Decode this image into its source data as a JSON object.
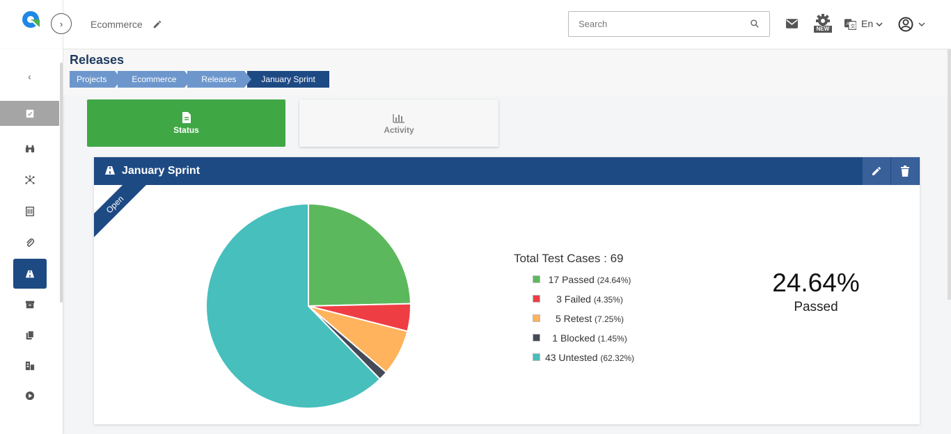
{
  "header": {
    "project_name": "Ecommerce",
    "search_placeholder": "Search",
    "language": "En",
    "new_badge": "NEW"
  },
  "page": {
    "title": "Releases",
    "breadcrumbs": [
      "Projects",
      "Ecommerce",
      "Releases",
      "January Sprint"
    ]
  },
  "tabs": {
    "status": "Status",
    "activity": "Activity"
  },
  "card": {
    "title": "January Sprint",
    "ribbon": "Open",
    "total_label": "Total Test Cases : 69",
    "big_percent": "24.64%",
    "big_label": "Passed"
  },
  "legend": [
    {
      "text": "17 Passed",
      "pct": "(24.64%)",
      "color": "#5cb85c"
    },
    {
      "text": "3 Failed",
      "pct": "(4.35%)",
      "color": "#ee3e44"
    },
    {
      "text": "5 Retest",
      "pct": "(7.25%)",
      "color": "#feb35c"
    },
    {
      "text": "1 Blocked",
      "pct": "(1.45%)",
      "color": "#444a57"
    },
    {
      "text": "43 Untested",
      "pct": "(62.32%)",
      "color": "#46bfbd"
    }
  ],
  "colors": {
    "brand_blue": "#1e4a84",
    "status_green": "#40a745",
    "crumb_blue": "#6d97cc"
  },
  "chart_data": {
    "type": "pie",
    "categories": [
      "Passed",
      "Failed",
      "Retest",
      "Blocked",
      "Untested"
    ],
    "values": [
      17,
      3,
      5,
      1,
      43
    ],
    "colors": [
      "#5cb85c",
      "#ee3e44",
      "#feb35c",
      "#444a57",
      "#46bfbd"
    ],
    "title": "Total Test Cases : 69"
  }
}
